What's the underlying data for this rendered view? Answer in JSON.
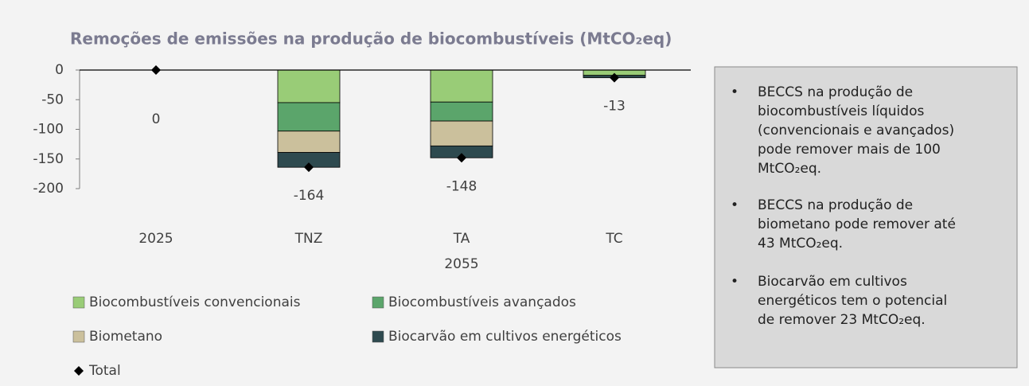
{
  "chart_data": {
    "type": "stacked_bar",
    "title": "Remoções de emissões na produção de biocombustíveis (MtCO₂eq)",
    "categories": [
      "2025",
      "TNZ",
      "TA",
      "TC"
    ],
    "category_group": {
      "label": "2055",
      "under": "TA"
    },
    "series": [
      {
        "name": "Biocombustíveis convencionais",
        "color": "#99cc77",
        "values": [
          0,
          -55,
          -54,
          -9
        ]
      },
      {
        "name": "Biocombustíveis avançados",
        "color": "#5ba56b",
        "values": [
          0,
          -48,
          -32,
          0
        ]
      },
      {
        "name": "Biometano",
        "color": "#cbc09c",
        "values": [
          0,
          -36,
          -42,
          0
        ]
      },
      {
        "name": "Biocarvão em cultivos energéticos",
        "color": "#2e4a4f",
        "values": [
          0,
          -25,
          -20,
          -4
        ]
      },
      {
        "name": "Total",
        "color": "#000000",
        "marker": "diamond",
        "values": [
          0,
          -164,
          -148,
          -13
        ]
      }
    ],
    "ylim": [
      -200,
      0
    ],
    "yticks": [
      0,
      -50,
      -100,
      -150,
      -200
    ],
    "legend": "bottom",
    "notes": [
      [
        "BECCS na produção de",
        "biocombustíveis líquidos",
        "(convencionais e avançados)",
        "pode remover mais de 100",
        "MtCO₂eq."
      ],
      [
        "BECCS na produção de",
        "biometano pode remover até",
        "43 MtCO₂eq."
      ],
      [
        "Biocarvão em cultivos",
        "energéticos tem o potencial",
        "de remover 23 MtCO₂eq."
      ]
    ]
  }
}
